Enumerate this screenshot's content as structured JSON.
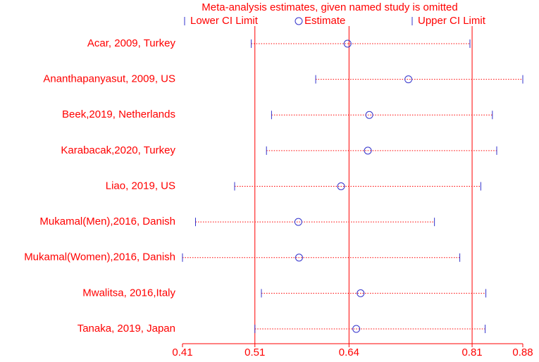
{
  "chart_data": {
    "type": "forest",
    "title": "Meta-analysis estimates, given named study is omitted",
    "categories": [
      "Acar, 2009, Turkey",
      "Ananthapanyasut, 2009, US",
      "Beek,2019, Netherlands",
      "Karabacak,2020, Turkey",
      "Liao, 2019, US",
      "Mukamal(Men),2016, Danish",
      "Mukamal(Women),2016, Danish",
      "Mwalitsa, 2016,Italy",
      "Tanaka, 2019, Japan"
    ],
    "series": [
      {
        "name": "Lower CI Limit",
        "color": "#3333cc",
        "values": [
          0.505,
          0.594,
          0.533,
          0.526,
          0.482,
          0.428,
          0.41,
          0.519,
          0.51
        ]
      },
      {
        "name": "Estimate",
        "color": "#3333cc",
        "values": [
          0.638,
          0.722,
          0.668,
          0.666,
          0.629,
          0.57,
          0.571,
          0.656,
          0.65
        ]
      },
      {
        "name": "Upper CI Limit",
        "color": "#3333cc",
        "values": [
          0.807,
          0.88,
          0.838,
          0.844,
          0.822,
          0.758,
          0.793,
          0.829,
          0.828
        ]
      }
    ],
    "xlim": [
      0.41,
      0.88
    ],
    "xticks": [
      0.41,
      0.51,
      0.64,
      0.81,
      0.88
    ],
    "reference_lines": [
      0.51,
      0.64,
      0.81
    ],
    "text_color": "#ff0000"
  }
}
